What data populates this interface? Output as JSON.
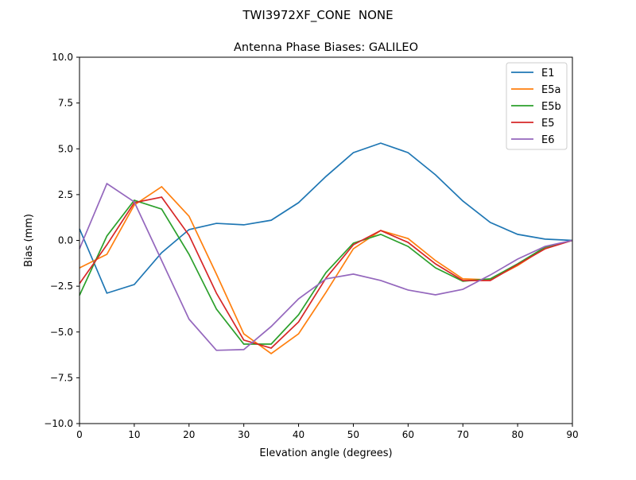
{
  "chart_data": {
    "type": "line",
    "suptitle": "TWI3972XF_CONE  NONE",
    "title": "Antenna Phase Biases: GALILEO",
    "xlabel": "Elevation angle (degrees)",
    "ylabel": "Bias (mm)",
    "xlim": [
      0,
      90
    ],
    "ylim": [
      -10,
      10
    ],
    "xticks": [
      "0",
      "10",
      "20",
      "30",
      "40",
      "50",
      "60",
      "70",
      "80",
      "90"
    ],
    "yticks": [
      "−10.0",
      "−7.5",
      "−5.0",
      "−2.5",
      "0.0",
      "2.5",
      "5.0",
      "7.5",
      "10.0"
    ],
    "grid": false,
    "legend_placement": "top-right",
    "x": [
      0,
      5,
      10,
      15,
      20,
      25,
      30,
      35,
      40,
      45,
      50,
      55,
      60,
      65,
      70,
      75,
      80,
      85,
      90
    ],
    "series": [
      {
        "name": "E1",
        "color": "#1f77b4",
        "values": [
          0.63,
          -2.88,
          -2.41,
          -0.67,
          0.59,
          0.93,
          0.85,
          1.1,
          2.06,
          3.49,
          4.79,
          5.31,
          4.79,
          3.58,
          2.15,
          0.98,
          0.33,
          0.07,
          0.0
        ]
      },
      {
        "name": "E5a",
        "color": "#ff7f0e",
        "values": [
          -1.5,
          -0.76,
          1.93,
          2.93,
          1.32,
          -1.84,
          -5.1,
          -6.18,
          -5.1,
          -2.84,
          -0.46,
          0.54,
          0.1,
          -1.1,
          -2.1,
          -2.15,
          -1.37,
          -0.41,
          0.0
        ]
      },
      {
        "name": "E5b",
        "color": "#2ca02c",
        "values": [
          -3.0,
          0.24,
          2.19,
          1.71,
          -0.76,
          -3.75,
          -5.66,
          -5.66,
          -4.06,
          -1.76,
          -0.15,
          0.33,
          -0.33,
          -1.5,
          -2.23,
          -2.1,
          -1.28,
          -0.37,
          0.0
        ]
      },
      {
        "name": "E5",
        "color": "#d62728",
        "values": [
          -2.36,
          -0.24,
          2.06,
          2.36,
          0.28,
          -2.88,
          -5.44,
          -5.88,
          -4.45,
          -2.06,
          -0.24,
          0.54,
          -0.11,
          -1.28,
          -2.19,
          -2.19,
          -1.32,
          -0.46,
          0.0
        ]
      },
      {
        "name": "E6",
        "color": "#9467bd",
        "values": [
          -0.46,
          3.1,
          2.1,
          -1.1,
          -4.3,
          -6.0,
          -5.96,
          -4.7,
          -3.19,
          -2.1,
          -1.84,
          -2.19,
          -2.71,
          -2.97,
          -2.67,
          -1.89,
          -1.02,
          -0.33,
          0.0
        ]
      }
    ]
  }
}
